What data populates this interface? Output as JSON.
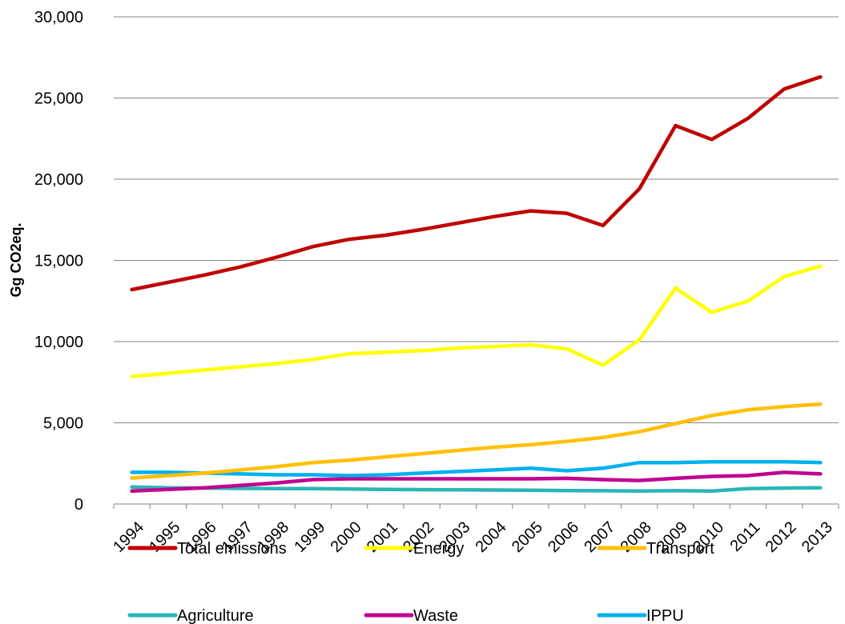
{
  "chart_data": {
    "type": "line",
    "title": "",
    "xlabel": "",
    "ylabel": "Gg CO2eq.",
    "ylim": [
      0,
      30000
    ],
    "yticks": [
      "0",
      "5,000",
      "10,000",
      "15,000",
      "20,000",
      "25,000",
      "30,000"
    ],
    "ytick_values": [
      0,
      5000,
      10000,
      15000,
      20000,
      25000,
      30000
    ],
    "grid": "horizontal",
    "legend_position": "bottom",
    "categories": [
      "1994",
      "1995",
      "1996",
      "1997",
      "1998",
      "1999",
      "2000",
      "2001",
      "2002",
      "2003",
      "2004",
      "2005",
      "2006",
      "2007",
      "2008",
      "2009",
      "2010",
      "2011",
      "2012",
      "2013"
    ],
    "series": [
      {
        "name": "Total emissions",
        "color": "#C00000",
        "values": [
          13200,
          13650,
          14100,
          14600,
          15200,
          15850,
          16300,
          16550,
          16900,
          17300,
          17700,
          18050,
          17900,
          17150,
          19400,
          23300,
          22450,
          23750,
          25550,
          26300
        ]
      },
      {
        "name": "Energy",
        "color": "#FFFF00",
        "values": [
          7850,
          8050,
          8250,
          8450,
          8650,
          8900,
          9250,
          9350,
          9450,
          9600,
          9700,
          9800,
          9550,
          8550,
          10100,
          13300,
          11800,
          12500,
          14000,
          14650
        ]
      },
      {
        "name": "Transport",
        "color": "#FFC000",
        "values": [
          1600,
          1750,
          1900,
          2100,
          2300,
          2550,
          2700,
          2900,
          3100,
          3300,
          3500,
          3650,
          3850,
          4100,
          4450,
          4950,
          5450,
          5800,
          6000,
          6150
        ]
      },
      {
        "name": "Agriculture",
        "color": "#2BB5B5",
        "values": [
          1050,
          1000,
          980,
          960,
          950,
          950,
          920,
          900,
          880,
          870,
          860,
          850,
          830,
          820,
          800,
          820,
          800,
          950,
          980,
          1000
        ]
      },
      {
        "name": "Waste",
        "color": "#C0008F",
        "values": [
          800,
          900,
          1000,
          1150,
          1300,
          1500,
          1550,
          1550,
          1550,
          1550,
          1550,
          1550,
          1580,
          1500,
          1450,
          1580,
          1700,
          1750,
          1950,
          1850
        ]
      },
      {
        "name": "IPPU",
        "color": "#00B0F0",
        "values": [
          1950,
          1950,
          1900,
          1850,
          1800,
          1800,
          1750,
          1800,
          1900,
          2000,
          2100,
          2200,
          2050,
          2200,
          2550,
          2550,
          2600,
          2600,
          2600,
          2550
        ]
      }
    ]
  }
}
